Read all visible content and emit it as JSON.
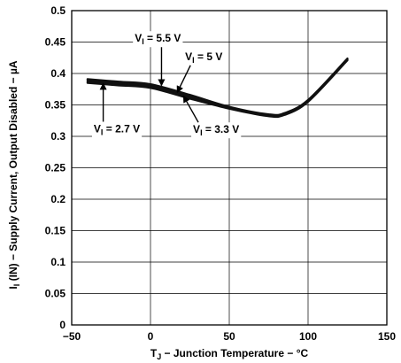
{
  "chart_data": {
    "type": "line",
    "title": "",
    "xlabel": "T_J − Junction Temperature − °C",
    "ylabel": "I_I (IN) − Supply Current, Output Disabled − µA",
    "xlim": [
      -50,
      150
    ],
    "ylim": [
      0,
      0.5
    ],
    "grid": true,
    "x_ticks": [
      "−50",
      "0",
      "50",
      "100",
      "150"
    ],
    "y_ticks": [
      "0",
      "0.05",
      "0.1",
      "0.15",
      "0.2",
      "0.25",
      "0.3",
      "0.35",
      "0.4",
      "0.45",
      "0.5"
    ],
    "series": [
      {
        "name": "V_I = 5.5 V",
        "x": [
          -40,
          -20,
          0,
          25,
          50,
          75,
          85,
          100,
          125
        ],
        "y": [
          0.391,
          0.387,
          0.383,
          0.366,
          0.347,
          0.335,
          0.337,
          0.358,
          0.424
        ]
      },
      {
        "name": "V_I = 5 V",
        "x": [
          -40,
          -20,
          0,
          25,
          50,
          75,
          85,
          100,
          125
        ],
        "y": [
          0.389,
          0.385,
          0.381,
          0.364,
          0.346,
          0.334,
          0.336,
          0.357,
          0.423
        ]
      },
      {
        "name": "V_I = 3.3 V",
        "x": [
          -40,
          -20,
          0,
          25,
          50,
          75,
          85,
          100,
          125
        ],
        "y": [
          0.387,
          0.383,
          0.379,
          0.362,
          0.345,
          0.333,
          0.335,
          0.356,
          0.422
        ]
      },
      {
        "name": "V_I = 2.7 V",
        "x": [
          -40,
          -20,
          0,
          25,
          50,
          75,
          85,
          100,
          125
        ],
        "y": [
          0.385,
          0.381,
          0.377,
          0.36,
          0.344,
          0.332,
          0.334,
          0.355,
          0.421
        ]
      }
    ],
    "annotations": [
      {
        "series": 0,
        "label_main": "V",
        "label_sub": "I",
        "label_rest": " = 5.5 V",
        "label_x": -10,
        "label_y": 0.456,
        "arrow_x": 7,
        "arrow_y": 0.381,
        "anchor": "start"
      },
      {
        "series": 1,
        "label_main": "V",
        "label_sub": "I",
        "label_rest": " = 5 V",
        "label_x": 22,
        "label_y": 0.427,
        "arrow_x": 17,
        "arrow_y": 0.37,
        "anchor": "start"
      },
      {
        "series": 2,
        "label_main": "V",
        "label_sub": "I",
        "label_rest": " = 3.3 V",
        "label_x": 27,
        "label_y": 0.311,
        "arrow_x": 21,
        "arrow_y": 0.364,
        "anchor": "start"
      },
      {
        "series": 3,
        "label_main": "V",
        "label_sub": "I",
        "label_rest": " = 2.7 V",
        "label_x": -36,
        "label_y": 0.312,
        "arrow_x": -30,
        "arrow_y": 0.384,
        "anchor": "start"
      }
    ]
  }
}
